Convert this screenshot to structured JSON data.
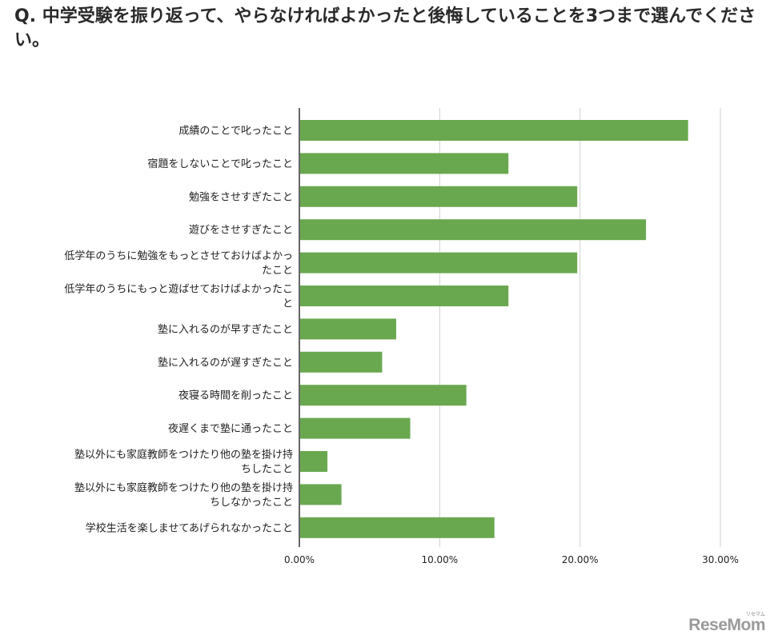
{
  "question": "Q.  中学受験を振り返って、やらなければよかったと後悔していることを3つまで選んでください。",
  "logo": {
    "text": "ReseMom",
    "reading": "リセマム"
  },
  "colors": {
    "bar": "#6aa84f",
    "grid": "#d0d0d0",
    "axis": "#333333"
  },
  "chart_data": {
    "type": "bar",
    "orientation": "horizontal",
    "title": "",
    "xlabel": "",
    "ylabel": "",
    "xlim": [
      0,
      0.3
    ],
    "grid": true,
    "legend": "none",
    "x_ticks": [
      "0.00%",
      "10.00%",
      "20.00%",
      "30.00%"
    ],
    "categories": [
      [
        "成績のことで叱ったこと"
      ],
      [
        "宿題をしないことで叱ったこと"
      ],
      [
        "勉強をさせすぎたこと"
      ],
      [
        "遊びをさせすぎたこと"
      ],
      [
        "低学年のうちに勉強をもっとさせておけばよかっ",
        "たこと"
      ],
      [
        "低学年のうちにもっと遊ばせておけばよかったこ",
        "と"
      ],
      [
        "塾に入れるのが早すぎたこと"
      ],
      [
        "塾に入れるのが遅すぎたこと"
      ],
      [
        "夜寝る時間を削ったこと"
      ],
      [
        "夜遅くまで塾に通ったこと"
      ],
      [
        "塾以外にも家庭教師をつけたり他の塾を掛け持",
        "ちしたこと"
      ],
      [
        "塾以外にも家庭教師をつけたり他の塾を掛け持",
        "ちしなかったこと"
      ],
      [
        "学校生活を楽しませてあげられなかったこと"
      ]
    ],
    "values": [
      0.277,
      0.149,
      0.198,
      0.247,
      0.198,
      0.149,
      0.069,
      0.059,
      0.119,
      0.079,
      0.02,
      0.03,
      0.139
    ]
  }
}
